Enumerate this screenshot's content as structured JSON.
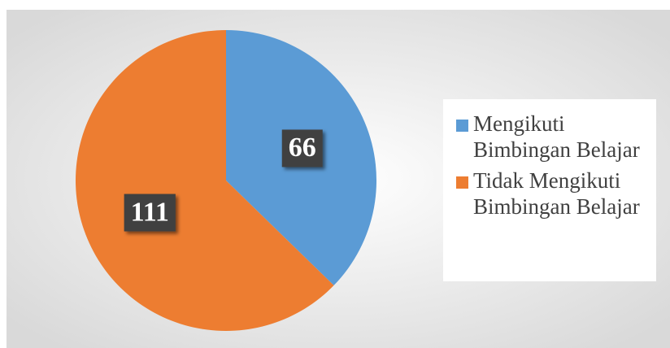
{
  "chart_data": {
    "type": "pie",
    "categories": [
      "Mengikuti Bimbingan Belajar",
      "Tidak Mengikuti Bimbingan Belajar"
    ],
    "values": [
      66,
      111
    ],
    "colors": [
      "#5b9bd5",
      "#ed7d31"
    ],
    "legend": "right"
  }
}
